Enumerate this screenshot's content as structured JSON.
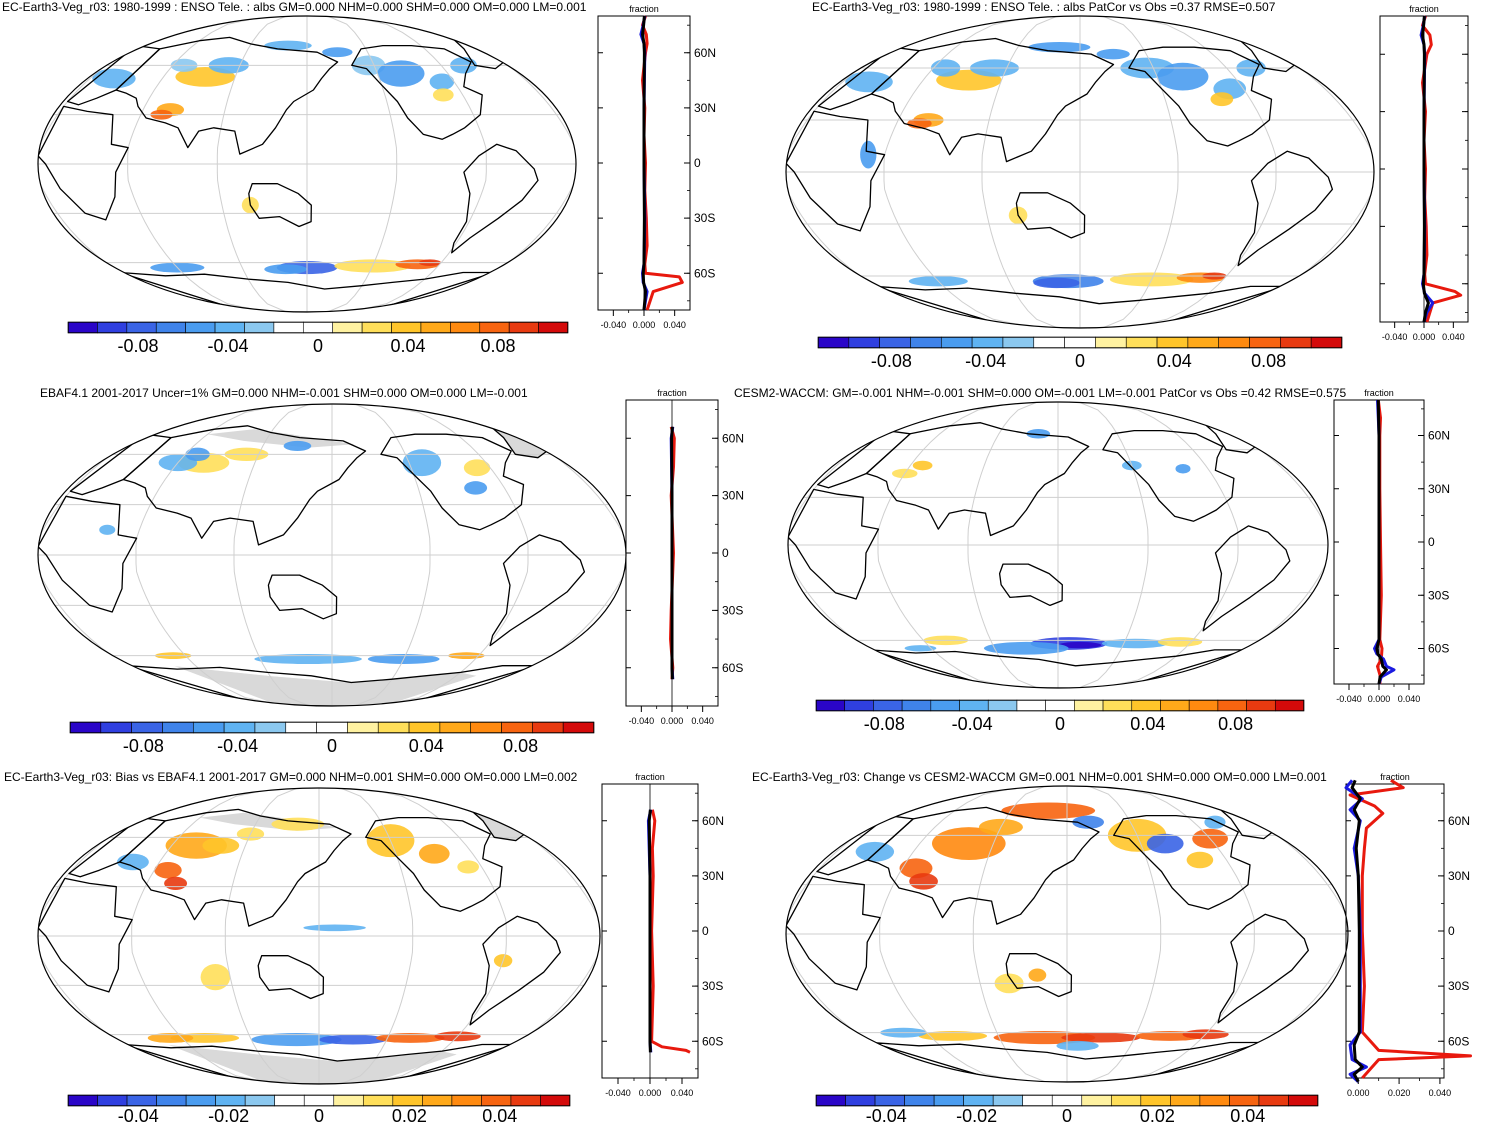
{
  "palette_diverging": [
    "#2a05c8",
    "#2f3fe0",
    "#3a64e6",
    "#3f83ea",
    "#4a9cef",
    "#5fb3f2",
    "#8bc8ef",
    "#ffffff",
    "#ffffff",
    "#fff2a1",
    "#ffdf5a",
    "#ffc52a",
    "#ffa91a",
    "#ff8a10",
    "#f76410",
    "#e83a10",
    "#d40a0a"
  ],
  "land_color": "#ffffff",
  "missing_color": "#d9d9d9",
  "panels": [
    {
      "id": "p1",
      "title": "EC-Earth3-Veg_r03: 1980-1999 : ENSO Tele. : albs GM=0.000 NHM=0.000 SHM=0.000 OM=0.000 LM=0.001",
      "cbar_labels": [
        "-0.08",
        "-0.04",
        "0",
        "0.04",
        "0.08"
      ],
      "zonal": {
        "title": "fraction",
        "lat_ticks": [
          "60N",
          "30N",
          "0",
          "30S",
          "60S"
        ],
        "x_ticks": [
          "-0.040",
          "0.000",
          "0.040"
        ]
      }
    },
    {
      "id": "p2",
      "title": "EC-Earth3-Veg_r03: 1980-1999 : ENSO Tele. : albs PatCor vs Obs =0.37 RMSE=0.507",
      "cbar_labels": [
        "-0.08",
        "-0.04",
        "0",
        "0.04",
        "0.08"
      ],
      "zonal": {
        "title": "fraction",
        "lat_ticks": [
          "",
          "",
          "",
          "",
          ""
        ],
        "x_ticks": [
          "-0.040",
          "0.000",
          "0.040"
        ]
      }
    },
    {
      "id": "p3",
      "title": "EBAF4.1 2001-2017 Uncer=1% GM=0.000 NHM=-0.001 SHM=0.000 OM=0.000 LM=-0.001",
      "cbar_labels": [
        "-0.08",
        "-0.04",
        "0",
        "0.04",
        "0.08"
      ],
      "zonal": {
        "title": "fraction",
        "lat_ticks": [
          "60N",
          "30N",
          "0",
          "30S",
          "60S"
        ],
        "x_ticks": [
          "-0.040",
          "0.000",
          "0.040"
        ]
      }
    },
    {
      "id": "p4",
      "title": "CESM2-WACCM: GM=-0.001 NHM=-0.001 SHM=0.000 OM=-0.001 LM=-0.001 PatCor vs Obs =0.42 RMSE=0.575",
      "cbar_labels": [
        "-0.08",
        "-0.04",
        "0",
        "0.04",
        "0.08"
      ],
      "zonal": {
        "title": "fraction",
        "lat_ticks": [
          "60N",
          "30N",
          "0",
          "30S",
          "60S"
        ],
        "x_ticks": [
          "-0.040",
          "0.000",
          "0.040"
        ]
      }
    },
    {
      "id": "p5",
      "title": "EC-Earth3-Veg_r03: Bias vs EBAF4.1 2001-2017 GM=0.000 NHM=0.001 SHM=0.000 OM=0.000 LM=0.002",
      "cbar_labels": [
        "-0.04",
        "-0.02",
        "0",
        "0.02",
        "0.04"
      ],
      "zonal": {
        "title": "fraction",
        "lat_ticks": [
          "60N",
          "30N",
          "0",
          "30S",
          "60S"
        ],
        "x_ticks": [
          "-0.040",
          "0.000",
          "0.040"
        ]
      }
    },
    {
      "id": "p6",
      "title": "EC-Earth3-Veg_r03: Change vs CESM2-WACCM GM=0.001 NHM=0.001 SHM=0.000 OM=0.000 LM=0.001",
      "cbar_labels": [
        "-0.04",
        "-0.02",
        "0",
        "0.02",
        "0.04"
      ],
      "zonal": {
        "title": "fraction",
        "lat_ticks": [
          "60N",
          "30N",
          "0",
          "30S",
          "60S"
        ],
        "x_ticks": [
          "0.000",
          "0.020",
          "0.040"
        ]
      }
    }
  ]
}
